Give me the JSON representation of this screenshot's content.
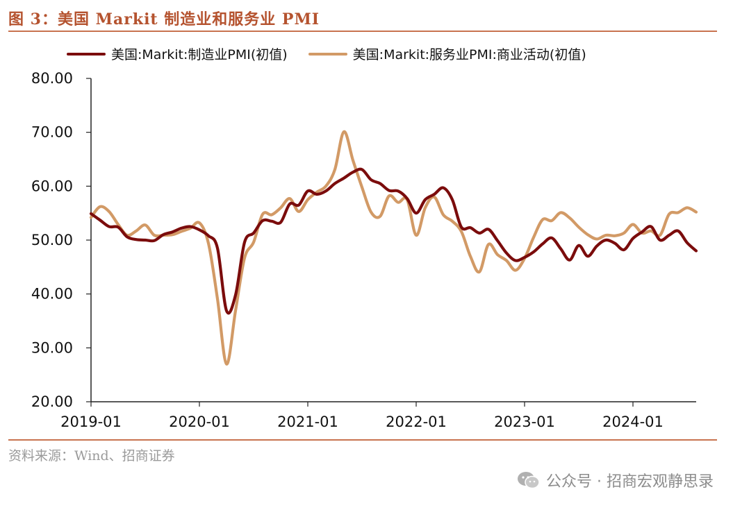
{
  "figure": {
    "title": "图 3：美国 Markit 制造业和服务业 PMI",
    "source": "资料来源：Wind、招商证券",
    "watermark": "公众号 · 招商宏观静思录"
  },
  "colors": {
    "title": "#b5532f",
    "rule": "#c8734f",
    "manufacturing": "#7b0c0c",
    "services": "#d29a66"
  },
  "chart_data": {
    "type": "line",
    "ylim": [
      20,
      80
    ],
    "y_ticks": [
      "80.00",
      "70.00",
      "60.00",
      "50.00",
      "40.00",
      "30.00",
      "20.00"
    ],
    "x_ticks": [
      "2019-01",
      "2020-01",
      "2021-01",
      "2022-01",
      "2023-01",
      "2024-01"
    ],
    "x": [
      "2019-01",
      "2019-02",
      "2019-03",
      "2019-04",
      "2019-05",
      "2019-06",
      "2019-07",
      "2019-08",
      "2019-09",
      "2019-10",
      "2019-11",
      "2019-12",
      "2020-01",
      "2020-02",
      "2020-03",
      "2020-04",
      "2020-05",
      "2020-06",
      "2020-07",
      "2020-08",
      "2020-09",
      "2020-10",
      "2020-11",
      "2020-12",
      "2021-01",
      "2021-02",
      "2021-03",
      "2021-04",
      "2021-05",
      "2021-06",
      "2021-07",
      "2021-08",
      "2021-09",
      "2021-10",
      "2021-11",
      "2021-12",
      "2022-01",
      "2022-02",
      "2022-03",
      "2022-04",
      "2022-05",
      "2022-06",
      "2022-07",
      "2022-08",
      "2022-09",
      "2022-10",
      "2022-11",
      "2022-12",
      "2023-01",
      "2023-02",
      "2023-03",
      "2023-04",
      "2023-05",
      "2023-06",
      "2023-07",
      "2023-08",
      "2023-09",
      "2023-10",
      "2023-11",
      "2023-12",
      "2024-01",
      "2024-02",
      "2024-03",
      "2024-04",
      "2024-05",
      "2024-06",
      "2024-07",
      "2024-08"
    ],
    "grid": false,
    "legend_position": "top",
    "series": [
      {
        "name": "美国:Markit:制造业PMI(初值)",
        "color": "#7b0c0c",
        "values": [
          54.9,
          53.7,
          52.5,
          52.4,
          50.6,
          50.1,
          50.0,
          49.9,
          51.0,
          51.5,
          52.2,
          52.5,
          51.9,
          50.8,
          48.5,
          36.9,
          39.8,
          49.6,
          51.3,
          53.6,
          53.5,
          53.3,
          56.7,
          56.5,
          59.1,
          58.5,
          59.1,
          60.5,
          61.5,
          62.6,
          63.1,
          61.2,
          60.5,
          59.2,
          59.1,
          57.7,
          55.0,
          57.5,
          58.5,
          59.7,
          57.5,
          52.4,
          52.3,
          51.3,
          52.0,
          49.9,
          47.6,
          46.2,
          46.8,
          47.8,
          49.3,
          50.4,
          48.4,
          46.3,
          49.0,
          47.0,
          48.9,
          50.0,
          49.4,
          48.2,
          50.3,
          51.5,
          52.5,
          50.0,
          50.9,
          51.7,
          49.5,
          48.0
        ]
      },
      {
        "name": "美国:Markit:服务业PMI:商业活动(初值)",
        "color": "#d29a66",
        "values": [
          54.2,
          56.2,
          55.3,
          52.9,
          50.9,
          51.7,
          52.8,
          50.9,
          50.9,
          51.0,
          51.6,
          52.2,
          53.2,
          49.4,
          39.1,
          27.0,
          36.9,
          46.7,
          49.6,
          54.8,
          54.7,
          56.0,
          57.7,
          55.3,
          57.5,
          58.9,
          60.0,
          63.1,
          70.1,
          64.8,
          59.8,
          55.2,
          54.4,
          58.2,
          57.0,
          57.5,
          50.9,
          56.0,
          58.0,
          54.7,
          53.5,
          51.6,
          47.0,
          44.1,
          49.2,
          47.3,
          46.2,
          44.4,
          46.6,
          50.5,
          53.8,
          53.6,
          55.1,
          54.1,
          52.4,
          51.0,
          50.2,
          50.9,
          50.8,
          51.3,
          52.9,
          51.3,
          51.7,
          50.9,
          54.8,
          55.1,
          56.0,
          55.2
        ]
      }
    ]
  }
}
